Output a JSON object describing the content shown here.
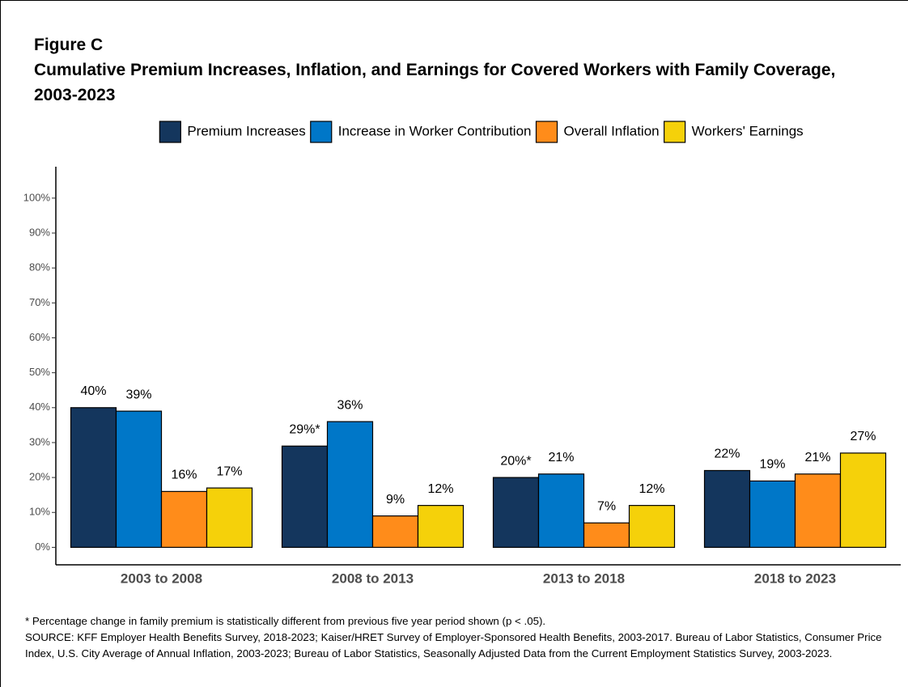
{
  "chart_data": {
    "type": "bar",
    "figure_label": "Figure C",
    "title": "Cumulative Premium Increases, Inflation, and Earnings for Covered Workers with Family Coverage, 2003-2023",
    "categories": [
      "2003 to 2008",
      "2008 to 2013",
      "2013 to 2018",
      "2018 to 2023"
    ],
    "series": [
      {
        "name": "Premium Increases",
        "color": "#14365d",
        "values": [
          40,
          29,
          20,
          22
        ],
        "value_labels": [
          "40%",
          "29%*",
          "20%*",
          "22%"
        ]
      },
      {
        "name": "Increase in Worker Contribution",
        "color": "#0077c8",
        "values": [
          39,
          36,
          21,
          19
        ],
        "value_labels": [
          "39%",
          "36%",
          "21%",
          "19%"
        ]
      },
      {
        "name": "Overall Inflation",
        "color": "#ff8c1a",
        "values": [
          16,
          9,
          7,
          21
        ],
        "value_labels": [
          "16%",
          "9%",
          "7%",
          "21%"
        ]
      },
      {
        "name": "Workers' Earnings",
        "color": "#f5d10a",
        "values": [
          17,
          12,
          12,
          27
        ],
        "value_labels": [
          "17%",
          "12%",
          "12%",
          "27%"
        ]
      }
    ],
    "ylim": [
      -5,
      109
    ],
    "yticks": [
      {
        "value": 0,
        "label": "0%"
      },
      {
        "value": 10,
        "label": "10%"
      },
      {
        "value": 20,
        "label": "20%"
      },
      {
        "value": 30,
        "label": "30%"
      },
      {
        "value": 40,
        "label": "40%"
      },
      {
        "value": 50,
        "label": "50%"
      },
      {
        "value": 60,
        "label": "60%"
      },
      {
        "value": 70,
        "label": "70%"
      },
      {
        "value": 80,
        "label": "80%"
      },
      {
        "value": 90,
        "label": "90%"
      },
      {
        "value": 100,
        "label": "100%"
      }
    ],
    "grid": false,
    "legend": "top",
    "footnote": "* Percentage change in family premium is statistically different from previous five year period shown (p < .05).",
    "source": "SOURCE: KFF Employer Health Benefits Survey, 2018-2023; Kaiser/HRET Survey of Employer-Sponsored Health Benefits, 2003-2017. Bureau of Labor Statistics, Consumer Price Index, U.S. City Average of Annual Inflation, 2003-2023; Bureau of Labor Statistics, Seasonally Adjusted Data from the Current Employment Statistics Survey, 2003-2023."
  }
}
